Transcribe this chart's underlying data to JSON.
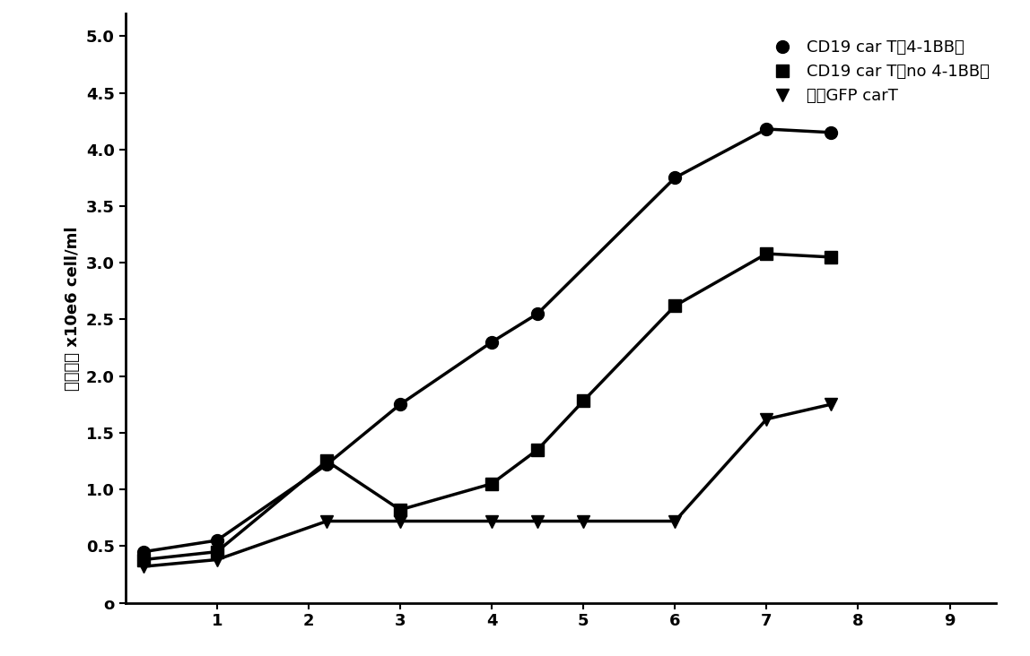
{
  "series": [
    {
      "label": "CD19 car T（4-1BB）",
      "x": [
        0.2,
        1.0,
        2.2,
        3.0,
        4.0,
        4.5,
        6.0,
        7.0,
        7.7
      ],
      "y": [
        0.45,
        0.55,
        1.22,
        1.75,
        2.3,
        2.55,
        3.75,
        4.18,
        4.15
      ],
      "marker": "o",
      "color": "#000000",
      "linewidth": 2.5,
      "markersize": 10
    },
    {
      "label": "CD19 car T（no 4-1BB）",
      "x": [
        0.2,
        1.0,
        2.2,
        3.0,
        4.0,
        4.5,
        5.0,
        6.0,
        7.0,
        7.7
      ],
      "y": [
        0.38,
        0.45,
        1.25,
        0.82,
        1.05,
        1.35,
        1.78,
        2.62,
        3.08,
        3.05
      ],
      "marker": "s",
      "color": "#000000",
      "linewidth": 2.5,
      "markersize": 10
    },
    {
      "label": "对照GFP carT",
      "x": [
        0.2,
        1.0,
        2.2,
        3.0,
        4.0,
        4.5,
        5.0,
        6.0,
        7.0,
        7.7
      ],
      "y": [
        0.32,
        0.38,
        0.72,
        0.72,
        0.72,
        0.72,
        0.72,
        0.72,
        1.62,
        1.75
      ],
      "marker": "v",
      "color": "#000000",
      "linewidth": 2.5,
      "markersize": 10
    }
  ],
  "ylabel": "细胞密度 x10e6 cell/ml",
  "xlabel": "",
  "xlim": [
    0,
    9.5
  ],
  "ylim": [
    0,
    5.2
  ],
  "yticks": [
    0,
    0.5,
    1.0,
    1.5,
    2.0,
    2.5,
    3.0,
    3.5,
    4.0,
    4.5,
    5.0
  ],
  "xticks": [
    1,
    2,
    3,
    4,
    5,
    6,
    7,
    8,
    9
  ],
  "background_color": "#ffffff",
  "legend_labels": [
    "CD19 car T（4-1BB）",
    "CD19 car T（no 4-1BB）",
    "对照GFP carT"
  ],
  "legend_markers": [
    "o",
    "s",
    "v"
  ],
  "title_fontsize": 12,
  "axis_fontsize": 13
}
